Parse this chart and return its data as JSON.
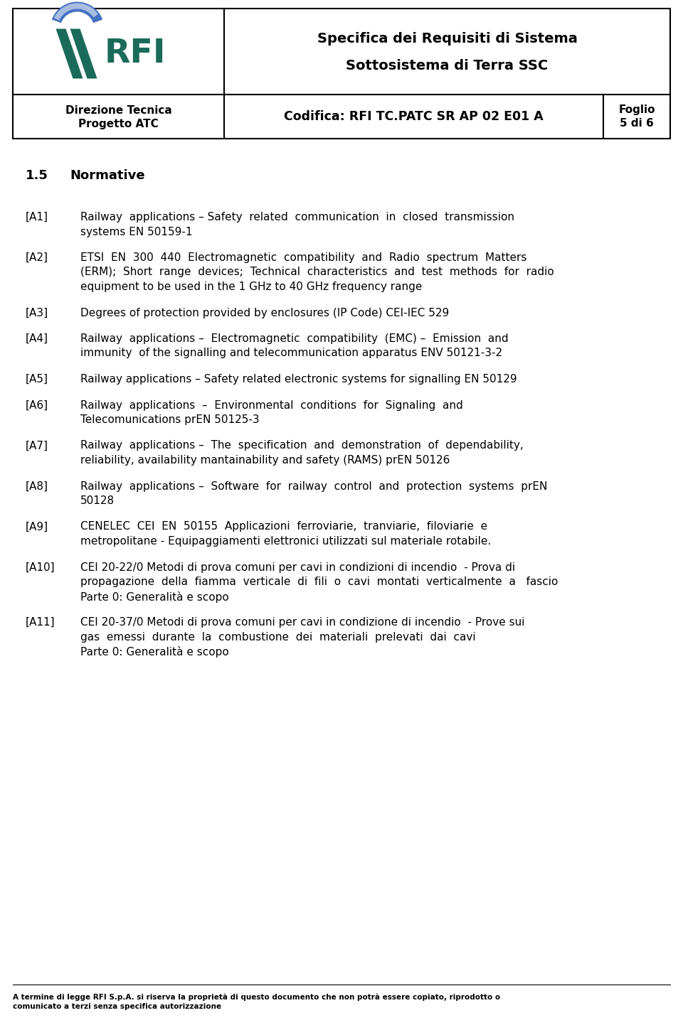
{
  "header_title1": "Specifica dei Requisiti di Sistema",
  "header_title2": "Sottosistema di Terra SSC",
  "left_header1": "Direzione Tecnica",
  "left_header2": "Progetto ATC",
  "codifica": "Codifica: RFI TC.PATC SR AP 02 E01 A",
  "foglio": "Foglio",
  "foglio_num": "5 di 6",
  "section": "1.5",
  "section_title": "Normative",
  "items": [
    {
      "tag": "[A1]",
      "text": "Railway  applications – Safety  related  communication  in  closed  transmission\nsystems EN 50159-1"
    },
    {
      "tag": "[A2]",
      "text": "ETSI  EN  300  440  Electromagnetic  compatibility  and  Radio  spectrum  Matters\n(ERM);  Short  range  devices;  Technical  characteristics  and  test  methods  for  radio\nequipment to be used in the 1 GHz to 40 GHz frequency range"
    },
    {
      "tag": "[A3]",
      "text": "Degrees of protection provided by enclosures (IP Code) CEI-IEC 529"
    },
    {
      "tag": "[A4]",
      "text": "Railway  applications –  Electromagnetic  compatibility  (EMC) –  Emission  and\nimmunity  of the signalling and telecommunication apparatus ENV 50121-3-2"
    },
    {
      "tag": "[A5]",
      "text": "Railway applications – Safety related electronic systems for signalling EN 50129"
    },
    {
      "tag": "[A6]",
      "text": "Railway  applications  –  Environmental  conditions  for  Signaling  and\nTelecomunications prEN 50125-3"
    },
    {
      "tag": "[A7]",
      "text": "Railway  applications –  The  specification  and  demonstration  of  dependability,\nreliability, availability mantainability and safety (RAMS) prEN 50126"
    },
    {
      "tag": "[A8]",
      "text": "Railway  applications –  Software  for  railway  control  and  protection  systems  prEN\n50128"
    },
    {
      "tag": "[A9]",
      "text": "CENELEC  CEI  EN  50155  Applicazioni  ferroviarie,  tranviarie,  filoviarie  e\nmetropolitane - Equipaggiamenti elettronici utilizzati sul materiale rotabile."
    },
    {
      "tag": "[A10]",
      "text": "CEI 20-22/0 Metodi di prova comuni per cavi in condizioni di incendio  - Prova di\npropagazione  della  fiamma  verticale  di  fili  o  cavi  montati  verticalmente  a   fascio\nParte 0: Generalità e scopo"
    },
    {
      "tag": "[A11]",
      "text": "CEI 20-37/0 Metodi di prova comuni per cavi in condizione di incendio  - Prove sui\ngas  emessi  durante  la  combustione  dei  materiali  prelevati  dai  cavi\nParte 0: Generalità e scopo"
    }
  ],
  "footer_text": "A termine di legge RFI S.p.A. si riserva la proprietà di questo documento che non potrà essere copiato, riprodotto o\ncomunicato a terzi senza specifica autorizzazione",
  "bg_color": "#ffffff",
  "text_color": "#000000",
  "border_color": "#000000",
  "rfi_green": "#1a6b5a",
  "rfi_blue": "#4472c4",
  "rfi_lightblue": "#a9bde0"
}
